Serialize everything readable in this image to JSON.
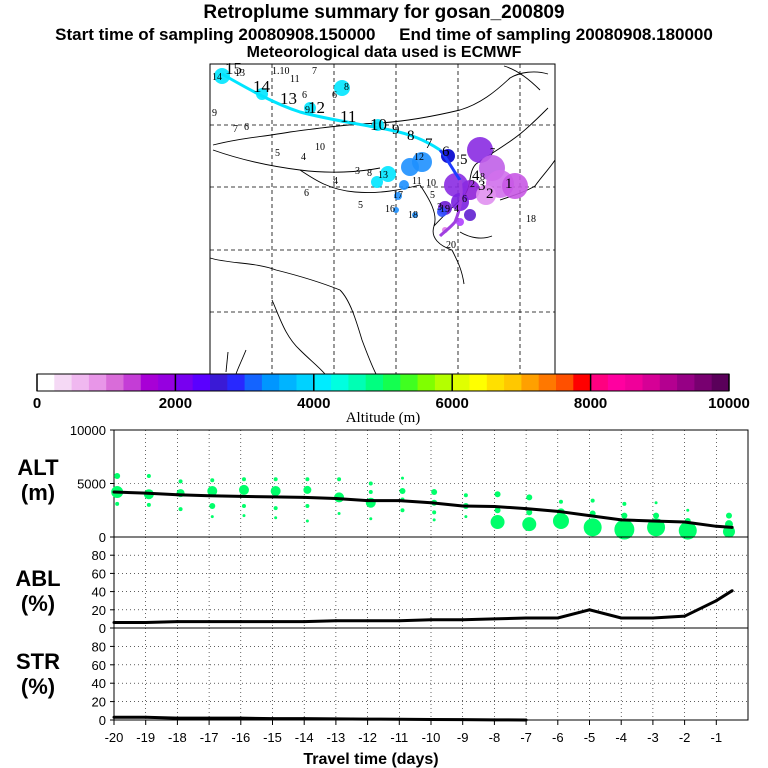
{
  "header": {
    "title": "Retroplume summary for gosan_200809",
    "start_label": "Start time of sampling 20080908.150000",
    "end_label": "End time of sampling 20080908.180000",
    "met_label": "Meteorological data used is ECMWF"
  },
  "map": {
    "trajectory_day_labels": [
      "15",
      "14",
      "13",
      "12",
      "11",
      "10",
      "9",
      "8",
      "7",
      "6",
      "5",
      "4",
      "3",
      "2",
      "1"
    ],
    "scattered_labels": [
      "14",
      "13",
      "1.10",
      "11",
      "7",
      "6",
      "9",
      "6",
      "8",
      "9",
      "7",
      "6",
      "5",
      "4",
      "10",
      "4",
      "3",
      "6",
      "5",
      "8",
      "13",
      "18",
      "16",
      "17",
      "12",
      "11",
      "10",
      "19",
      "20",
      "18",
      "7",
      "8",
      "6",
      "5",
      "2",
      "4",
      "3"
    ],
    "track_colors": [
      "#00e5ff",
      "#1e90ff",
      "#0000cd",
      "#8a2be2",
      "#ee82ee"
    ]
  },
  "colorbar": {
    "colors": [
      "#ffffff",
      "#f5d9f5",
      "#f0b8f0",
      "#e896e8",
      "#d96cd9",
      "#c43dd6",
      "#a800d6",
      "#9600e0",
      "#7800f0",
      "#5a00ff",
      "#3a1ad6",
      "#2828ff",
      "#1464ff",
      "#0096ff",
      "#00b4ff",
      "#00d2ff",
      "#00ecff",
      "#00ffe0",
      "#00ffb4",
      "#00ff80",
      "#14ff50",
      "#40ff20",
      "#80ff00",
      "#b4ff00",
      "#e0ff00",
      "#ffff00",
      "#ffe000",
      "#ffc800",
      "#ffa000",
      "#ff7800",
      "#ff5000",
      "#ff0000",
      "#ff0080",
      "#ff00a0",
      "#f0009a",
      "#d60096",
      "#b40090",
      "#960085",
      "#780070",
      "#5a005a"
    ],
    "ticks": [
      "0",
      "2000",
      "4000",
      "6000",
      "8000",
      "10000"
    ],
    "label": "Altitude (m)"
  },
  "chart_data": [
    {
      "type": "line",
      "name": "ALT",
      "ylabel": "ALT\n(m)",
      "ylim": [
        0,
        10000
      ],
      "yticks": [
        0,
        5000,
        10000
      ],
      "xlim": [
        -20,
        0
      ],
      "x": [
        -20,
        -19,
        -18,
        -17,
        -16,
        -15,
        -14,
        -13,
        -12,
        -11,
        -10,
        -9,
        -8,
        -7,
        -6,
        -5,
        -4,
        -3,
        -2,
        -1,
        -0.5
      ],
      "values": [
        4200,
        4100,
        3950,
        3850,
        3800,
        3750,
        3700,
        3600,
        3400,
        3400,
        3200,
        2900,
        2850,
        2650,
        2400,
        2000,
        1600,
        1500,
        1400,
        1000,
        900
      ],
      "scatter_color": "#00ff6a",
      "scatter_points": [
        {
          "x": -19.9,
          "y": 4200,
          "s": 6
        },
        {
          "x": -19.9,
          "y": 5700,
          "s": 3
        },
        {
          "x": -19.9,
          "y": 3100,
          "s": 2
        },
        {
          "x": -18.9,
          "y": 4000,
          "s": 5
        },
        {
          "x": -18.9,
          "y": 5700,
          "s": 2
        },
        {
          "x": -18.9,
          "y": 3000,
          "s": 2
        },
        {
          "x": -17.9,
          "y": 4100,
          "s": 4
        },
        {
          "x": -17.9,
          "y": 5200,
          "s": 2
        },
        {
          "x": -17.9,
          "y": 2600,
          "s": 2
        },
        {
          "x": -16.9,
          "y": 4300,
          "s": 5
        },
        {
          "x": -16.9,
          "y": 5300,
          "s": 2
        },
        {
          "x": -16.9,
          "y": 2900,
          "s": 3
        },
        {
          "x": -16.9,
          "y": 1900,
          "s": 1.5
        },
        {
          "x": -15.9,
          "y": 4400,
          "s": 5
        },
        {
          "x": -15.9,
          "y": 5400,
          "s": 2
        },
        {
          "x": -15.9,
          "y": 2900,
          "s": 2
        },
        {
          "x": -15.9,
          "y": 2000,
          "s": 1.5
        },
        {
          "x": -14.9,
          "y": 4300,
          "s": 5
        },
        {
          "x": -14.9,
          "y": 5400,
          "s": 2
        },
        {
          "x": -14.9,
          "y": 2700,
          "s": 2
        },
        {
          "x": -14.9,
          "y": 1800,
          "s": 1.5
        },
        {
          "x": -13.9,
          "y": 4400,
          "s": 4
        },
        {
          "x": -13.9,
          "y": 5400,
          "s": 2
        },
        {
          "x": -13.9,
          "y": 2900,
          "s": 2
        },
        {
          "x": -13.9,
          "y": 1500,
          "s": 1.5
        },
        {
          "x": -12.9,
          "y": 3700,
          "s": 5
        },
        {
          "x": -12.9,
          "y": 5400,
          "s": 2
        },
        {
          "x": -12.9,
          "y": 2200,
          "s": 1.5
        },
        {
          "x": -11.9,
          "y": 3200,
          "s": 5
        },
        {
          "x": -11.9,
          "y": 5000,
          "s": 2
        },
        {
          "x": -11.9,
          "y": 4200,
          "s": 2
        },
        {
          "x": -11.9,
          "y": 1700,
          "s": 1.5
        },
        {
          "x": -10.9,
          "y": 4300,
          "s": 3
        },
        {
          "x": -10.9,
          "y": 5500,
          "s": 1.5
        },
        {
          "x": -10.9,
          "y": 3500,
          "s": 2
        },
        {
          "x": -10.9,
          "y": 2500,
          "s": 2
        },
        {
          "x": -9.9,
          "y": 4200,
          "s": 3
        },
        {
          "x": -9.9,
          "y": 3200,
          "s": 3
        },
        {
          "x": -9.9,
          "y": 2300,
          "s": 2
        },
        {
          "x": -9.9,
          "y": 1600,
          "s": 1.5
        },
        {
          "x": -8.9,
          "y": 3900,
          "s": 2
        },
        {
          "x": -8.9,
          "y": 2900,
          "s": 3
        },
        {
          "x": -8.9,
          "y": 1900,
          "s": 1.5
        },
        {
          "x": -7.9,
          "y": 4000,
          "s": 3
        },
        {
          "x": -7.9,
          "y": 2500,
          "s": 3
        },
        {
          "x": -7.9,
          "y": 1400,
          "s": 7
        },
        {
          "x": -6.9,
          "y": 3700,
          "s": 3
        },
        {
          "x": -6.9,
          "y": 2300,
          "s": 3
        },
        {
          "x": -6.9,
          "y": 1200,
          "s": 7
        },
        {
          "x": -5.9,
          "y": 3300,
          "s": 2
        },
        {
          "x": -5.9,
          "y": 2300,
          "s": 4
        },
        {
          "x": -5.9,
          "y": 1500,
          "s": 8
        },
        {
          "x": -4.9,
          "y": 3400,
          "s": 2
        },
        {
          "x": -4.9,
          "y": 2200,
          "s": 3
        },
        {
          "x": -4.9,
          "y": 900,
          "s": 9
        },
        {
          "x": -3.9,
          "y": 3100,
          "s": 2
        },
        {
          "x": -3.9,
          "y": 2000,
          "s": 3
        },
        {
          "x": -3.9,
          "y": 700,
          "s": 10
        },
        {
          "x": -2.9,
          "y": 3200,
          "s": 1.5
        },
        {
          "x": -2.9,
          "y": 2000,
          "s": 3
        },
        {
          "x": -2.9,
          "y": 900,
          "s": 9
        },
        {
          "x": -1.9,
          "y": 2500,
          "s": 1.5
        },
        {
          "x": -1.9,
          "y": 1500,
          "s": 3
        },
        {
          "x": -1.9,
          "y": 600,
          "s": 9
        },
        {
          "x": -0.6,
          "y": 2000,
          "s": 3
        },
        {
          "x": -0.6,
          "y": 1200,
          "s": 4
        },
        {
          "x": -0.6,
          "y": 500,
          "s": 6
        }
      ]
    },
    {
      "type": "line",
      "name": "ABL",
      "ylabel": "ABL\n(%)",
      "ylim": [
        0,
        100
      ],
      "yticks": [
        0,
        20,
        40,
        60,
        80
      ],
      "xlim": [
        -20,
        0
      ],
      "x": [
        -20,
        -19,
        -18,
        -17,
        -16,
        -15,
        -14,
        -13,
        -12,
        -11,
        -10,
        -9,
        -8,
        -7,
        -6,
        -5,
        -4,
        -3,
        -2,
        -1,
        -0.5
      ],
      "values": [
        6,
        6,
        7,
        7,
        7,
        7,
        7,
        8,
        8,
        8,
        9,
        9,
        10,
        11,
        11,
        20,
        11,
        11,
        13,
        30,
        41
      ]
    },
    {
      "type": "line",
      "name": "STR",
      "ylabel": "STR\n(%)",
      "ylim": [
        0,
        100
      ],
      "yticks": [
        0,
        20,
        40,
        60,
        80
      ],
      "xlim": [
        -20,
        0
      ],
      "x": [
        -20,
        -19,
        -18,
        -17,
        -16,
        -15,
        -14,
        -13,
        -12,
        -11,
        -10,
        -9,
        -8,
        -7
      ],
      "values": [
        3,
        3,
        2,
        2,
        2,
        1.5,
        1.5,
        1.2,
        1,
        0.8,
        0.6,
        0.4,
        0.2,
        0
      ],
      "xticks": [
        "-20",
        "-19",
        "-18",
        "-17",
        "-16",
        "-15",
        "-14",
        "-13",
        "-12",
        "-11",
        "-10",
        "-9",
        "-8",
        "-7",
        "-6",
        "-5",
        "-4",
        "-3",
        "-2",
        "-1"
      ],
      "xlabel": "Travel time (days)"
    }
  ]
}
